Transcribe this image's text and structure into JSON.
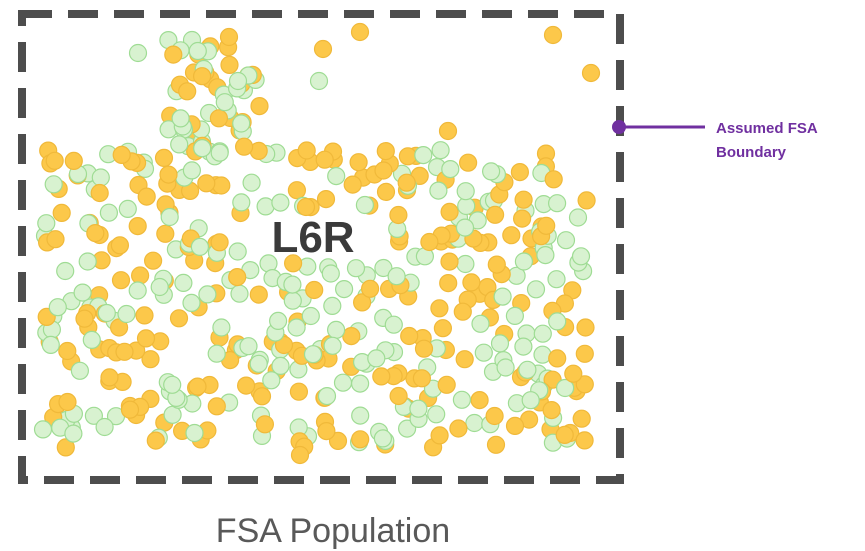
{
  "fsa_code": "L6R",
  "callout": {
    "line1": "Assumed FSA",
    "line2": "Boundary",
    "color": "#7030a0"
  },
  "caption": "FSA Population",
  "colors": {
    "boundary": "#4d4d4d",
    "dot_yellow": "#fcc84a",
    "dot_yellow_stroke": "#f0b93a",
    "dot_green": "#d8f2d0",
    "dot_green_stroke": "#9fdc94"
  }
}
